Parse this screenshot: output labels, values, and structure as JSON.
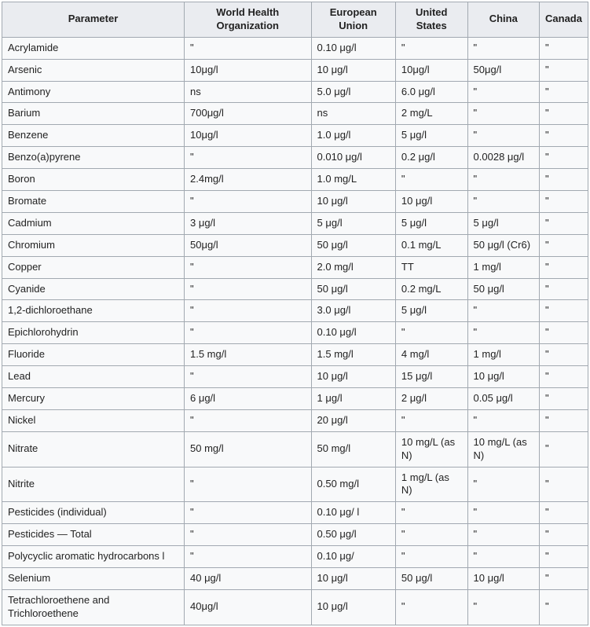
{
  "table": {
    "columns": [
      "Parameter",
      "World Health Organization",
      "European Union",
      "United States",
      "China",
      "Canada"
    ],
    "rows": [
      [
        "Acrylamide",
        "\"",
        "0.10 μg/l",
        "\"",
        "\"",
        "\""
      ],
      [
        "Arsenic",
        "10μg/l",
        "10 μg/l",
        "10μg/l",
        "50μg/l",
        "\""
      ],
      [
        "Antimony",
        "ns",
        "5.0 μg/l",
        "6.0 μg/l",
        "\"",
        "\""
      ],
      [
        "Barium",
        "700μg/l",
        "ns",
        "2 mg/L",
        "\"",
        "\""
      ],
      [
        "Benzene",
        "10μg/l",
        "1.0 μg/l",
        "5 μg/l",
        "\"",
        "\""
      ],
      [
        "Benzo(a)pyrene",
        "\"",
        "0.010 μg/l",
        "0.2 μg/l",
        "0.0028 μg/l",
        "\""
      ],
      [
        "Boron",
        "2.4mg/l",
        "1.0 mg/L",
        "\"",
        "\"",
        "\""
      ],
      [
        "Bromate",
        "\"",
        "10 μg/l",
        "10 μg/l",
        "\"",
        "\""
      ],
      [
        "Cadmium",
        "3 μg/l",
        "5 μg/l",
        "5 μg/l",
        "5 μg/l",
        "\""
      ],
      [
        "Chromium",
        "50μg/l",
        "50 μg/l",
        "0.1 mg/L",
        "50 μg/l (Cr6)",
        "\""
      ],
      [
        "Copper",
        "\"",
        "2.0 mg/l",
        "TT",
        "1 mg/l",
        "\""
      ],
      [
        "Cyanide",
        "\"",
        "50 μg/l",
        "0.2 mg/L",
        "50 μg/l",
        "\""
      ],
      [
        "1,2-dichloroethane",
        "\"",
        "3.0 μg/l",
        "5 μg/l",
        "\"",
        "\""
      ],
      [
        "Epichlorohydrin",
        "\"",
        "0.10 μg/l",
        "\"",
        "\"",
        "\""
      ],
      [
        "Fluoride",
        "1.5 mg/l",
        "1.5 mg/l",
        "4 mg/l",
        "1 mg/l",
        "\""
      ],
      [
        "Lead",
        "\"",
        "10 μg/l",
        "15 μg/l",
        "10 μg/l",
        "\""
      ],
      [
        "Mercury",
        "6 μg/l",
        "1 μg/l",
        "2 μg/l",
        "0.05 μg/l",
        "\""
      ],
      [
        "Nickel",
        "\"",
        "20 μg/l",
        "\"",
        "\"",
        "\""
      ],
      [
        "Nitrate",
        "50 mg/l",
        "50 mg/l",
        "10 mg/L (as N)",
        "10 mg/L (as N)",
        "\""
      ],
      [
        "Nitrite",
        "\"",
        "0.50 mg/l",
        "1 mg/L (as N)",
        "\"",
        "\""
      ],
      [
        "Pesticides (individual)",
        "\"",
        "0.10 μg/ l",
        "\"",
        "\"",
        "\""
      ],
      [
        "Pesticides — Total",
        "\"",
        "0.50 μg/l",
        "\"",
        "\"",
        "\""
      ],
      [
        "Polycyclic aromatic hydrocarbons l",
        "\"",
        "0.10 μg/",
        "\"",
        "\"",
        "\""
      ],
      [
        "Selenium",
        "40 μg/l",
        "10 μg/l",
        "50 μg/l",
        "10 μg/l",
        "\""
      ],
      [
        "Tetrachloroethene and Trichloroethene",
        "40μg/l",
        "10 μg/l",
        "\"",
        "\"",
        "\""
      ]
    ]
  }
}
